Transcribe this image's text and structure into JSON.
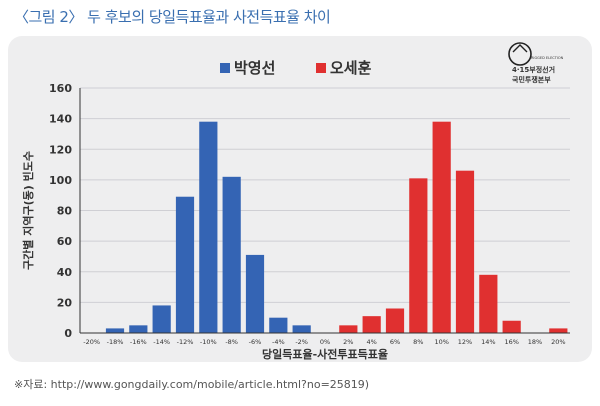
{
  "figure_title": "〈그림 2〉 두 후보의 당일득표율과 사전득표율 차이",
  "source_note": "※자료: http://www.gongdaily.com/mobile/article.html?no=25819)",
  "logo": {
    "line1": "4·15부정선거",
    "line2": "국민투쟁본부",
    "small": "RIGGED ELECTION"
  },
  "colors": {
    "blue": "#3464b4",
    "red": "#e03030",
    "axis": "#333333"
  },
  "chart_data": {
    "type": "bar",
    "ylabel": "구간별 지역구(동) 빈도수",
    "xlabel": "당일득표율-사전투표득표율",
    "ylim": [
      0,
      160
    ],
    "yticks": [
      0,
      20,
      40,
      60,
      80,
      100,
      120,
      140,
      160
    ],
    "categories": [
      "-20%",
      "-18%",
      "-16%",
      "-14%",
      "-12%",
      "-10%",
      "-8%",
      "-6%",
      "-4%",
      "-2%",
      "0%",
      "2%",
      "4%",
      "6%",
      "8%",
      "10%",
      "12%",
      "14%",
      "16%",
      "18%",
      "20%"
    ],
    "legend_position": "top-center",
    "grid": true,
    "series": [
      {
        "name": "박영선",
        "color": "#3464b4",
        "values": [
          0,
          3,
          5,
          18,
          89,
          138,
          102,
          51,
          10,
          5,
          0,
          0,
          0,
          0,
          0,
          0,
          0,
          0,
          0,
          0,
          0
        ]
      },
      {
        "name": "오세훈",
        "color": "#e03030",
        "values": [
          0,
          0,
          0,
          0,
          0,
          0,
          0,
          0,
          0,
          0,
          0,
          5,
          11,
          16,
          101,
          138,
          106,
          38,
          8,
          0,
          3
        ]
      }
    ]
  }
}
